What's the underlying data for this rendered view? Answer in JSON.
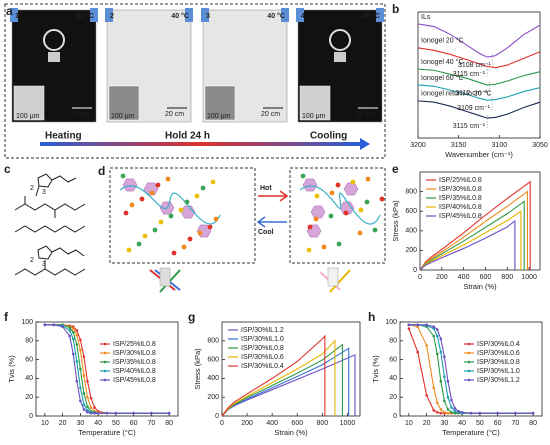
{
  "panel_labels": [
    "a",
    "b",
    "c",
    "d",
    "e",
    "f",
    "g",
    "h"
  ],
  "photos": [
    {
      "number": "1",
      "temp": "20 °C",
      "color": "#1f5fd6"
    },
    {
      "number": "2",
      "temp": "40 °C",
      "color": "#e0312a"
    },
    {
      "number": "3",
      "temp": "40 °C",
      "color": "#e0312a"
    },
    {
      "number": "4",
      "temp": "20 °C",
      "color": "#1f5fd6"
    }
  ],
  "scale_bars": {
    "photo": "20 cm",
    "micro": "100 μm"
  },
  "process": [
    "Heating",
    "Hold 24 h",
    "Cooling"
  ],
  "scheme_c": {
    "labels": [
      "2",
      "3",
      "2",
      "3"
    ]
  },
  "scheme_d": {
    "hot": "Hot",
    "cool": "Cool"
  },
  "chart_data": [
    {
      "type": "line",
      "xlabel": "Wavenumber (cm⁻¹)",
      "x": [
        3200,
        3180,
        3160,
        3140,
        3125,
        3115,
        3105,
        3090,
        3070,
        3050
      ],
      "xlim": [
        3200,
        3050
      ],
      "xticks": [
        3200,
        3150,
        3100,
        3050
      ],
      "ylim": [
        1,
        10.5
      ],
      "legend": "left",
      "series": [
        {
          "name": "ILs",
          "color": "#8a4fc6",
          "values": [
            9.6,
            9.4,
            8.8,
            8.0,
            7.4,
            7.1,
            7.2,
            7.8,
            8.8,
            9.5
          ]
        },
        {
          "name": "Ionogel 20 °C",
          "color": "#e0312a",
          "values": [
            7.8,
            7.6,
            7.3,
            6.9,
            6.6,
            6.4,
            6.3,
            6.5,
            7.0,
            7.5
          ]
        },
        {
          "name": "Ionogel 40 °C",
          "color": "#2e9a48",
          "values": [
            6.2,
            6.1,
            5.8,
            5.5,
            5.2,
            5.0,
            5.05,
            5.3,
            5.7,
            6.0
          ]
        },
        {
          "name": "Ionogel 60 °C",
          "color": "#1aa0b0",
          "values": [
            5.0,
            4.9,
            4.6,
            4.3,
            4.0,
            3.85,
            3.9,
            4.1,
            4.5,
            4.8
          ]
        },
        {
          "name": "Ionogel return to 20 °C",
          "color": "#1c2a55",
          "values": [
            3.8,
            3.7,
            3.4,
            3.0,
            2.7,
            2.5,
            2.55,
            2.8,
            3.3,
            3.7
          ]
        }
      ],
      "annotations": [
        {
          "text": "3108 cm⁻¹",
          "x": 3108
        },
        {
          "text": "3115 cm⁻¹",
          "x": 3115
        },
        {
          "text": "3112 cm⁻¹",
          "x": 3112
        },
        {
          "text": "3109 cm⁻¹",
          "x": 3109
        },
        {
          "text": "3115 cm⁻¹",
          "x": 3115
        }
      ]
    },
    {
      "type": "line",
      "xlabel": "Strain (%)",
      "ylabel": "Stress (kPa)",
      "xlim": [
        0,
        1100
      ],
      "xticks": [
        0,
        200,
        400,
        600,
        800,
        1000
      ],
      "ylim": [
        0,
        1000
      ],
      "yticks": [
        0,
        200,
        400,
        600,
        800
      ],
      "legend": "upper left",
      "series": [
        {
          "name": "ISP/25%IL0.8",
          "color": "#e0312a",
          "x": [
            0,
            50,
            100,
            200,
            400,
            600,
            800,
            1010,
            1010
          ],
          "values": [
            0,
            80,
            130,
            210,
            380,
            560,
            730,
            900,
            0
          ]
        },
        {
          "name": "ISP/30%IL0.8",
          "color": "#f08a1c",
          "x": [
            0,
            50,
            100,
            200,
            400,
            600,
            800,
            985,
            985
          ],
          "values": [
            0,
            70,
            115,
            185,
            335,
            495,
            650,
            800,
            0
          ]
        },
        {
          "name": "ISP/35%IL0.8",
          "color": "#2e9a48",
          "x": [
            0,
            50,
            100,
            200,
            400,
            600,
            800,
            955,
            955
          ],
          "values": [
            0,
            62,
            100,
            165,
            295,
            435,
            575,
            700,
            0
          ]
        },
        {
          "name": "ISP/40%IL0.8",
          "color": "#e8b400",
          "x": [
            0,
            50,
            100,
            200,
            400,
            600,
            800,
            925,
            925
          ],
          "values": [
            0,
            55,
            88,
            145,
            255,
            380,
            505,
            600,
            0
          ]
        },
        {
          "name": "ISP/45%IL0.8",
          "color": "#6a4fc6",
          "x": [
            0,
            50,
            100,
            200,
            400,
            600,
            800,
            870,
            870
          ],
          "values": [
            0,
            48,
            75,
            125,
            220,
            325,
            440,
            500,
            0
          ]
        }
      ]
    },
    {
      "type": "line",
      "xlabel": "Temperature (°C)",
      "ylabel": "Tvis (%)",
      "x": [
        10,
        15,
        20,
        24,
        26,
        28,
        30,
        32,
        34,
        36,
        38,
        40,
        45,
        50,
        60,
        70,
        80
      ],
      "xlim": [
        5,
        85
      ],
      "xticks": [
        10,
        20,
        30,
        40,
        50,
        60,
        70,
        80
      ],
      "ylim": [
        0,
        100
      ],
      "yticks": [
        0,
        20,
        40,
        60,
        80,
        100
      ],
      "markers": true,
      "legend": "right",
      "series": [
        {
          "name": "ISP/25%IL0.8",
          "color": "#e0312a",
          "values": [
            97,
            97,
            97,
            96,
            95,
            91,
            81,
            63,
            37,
            19,
            9,
            5,
            3,
            3,
            3,
            3,
            3
          ]
        },
        {
          "name": "ISP/30%IL0.8",
          "color": "#f08a1c",
          "values": [
            97,
            97,
            97,
            95,
            93,
            86,
            70,
            43,
            20,
            9,
            5,
            4,
            3,
            3,
            3,
            3,
            3
          ]
        },
        {
          "name": "ISP/35%IL0.8",
          "color": "#2e9a48",
          "values": [
            97,
            97,
            97,
            94,
            89,
            76,
            50,
            24,
            10,
            5,
            4,
            3,
            3,
            3,
            3,
            3,
            3
          ]
        },
        {
          "name": "ISP/40%IL0.8",
          "color": "#1aa0b0",
          "values": [
            97,
            97,
            96,
            91,
            82,
            58,
            30,
            12,
            6,
            4,
            3,
            3,
            3,
            3,
            3,
            3,
            3
          ]
        },
        {
          "name": "ISP/45%IL0.8",
          "color": "#6a4fc6",
          "values": [
            97,
            97,
            95,
            85,
            66,
            37,
            16,
            7,
            4,
            3,
            3,
            3,
            3,
            3,
            3,
            3,
            3
          ]
        }
      ]
    },
    {
      "type": "line",
      "xlabel": "Strain (%)",
      "ylabel": "Stress (kPa)",
      "xlim": [
        0,
        1100
      ],
      "xticks": [
        0,
        200,
        400,
        600,
        800,
        1000
      ],
      "ylim": [
        0,
        1000
      ],
      "yticks": [
        0,
        200,
        400,
        600,
        800
      ],
      "legend": "upper left",
      "series": [
        {
          "name": "ISP/30%IL1.2",
          "color": "#6a4fc6",
          "x": [
            0,
            50,
            100,
            200,
            400,
            600,
            800,
            1060,
            1060
          ],
          "values": [
            0,
            70,
            110,
            170,
            280,
            390,
            500,
            650,
            0
          ]
        },
        {
          "name": "ISP/30%IL1.0",
          "color": "#3b6fd8",
          "x": [
            0,
            50,
            100,
            200,
            400,
            600,
            800,
            1010,
            1010
          ],
          "values": [
            0,
            70,
            115,
            180,
            300,
            420,
            545,
            720,
            0
          ]
        },
        {
          "name": "ISP/30%IL0.8",
          "color": "#2e9a48",
          "x": [
            0,
            50,
            100,
            200,
            400,
            600,
            800,
            960,
            960
          ],
          "values": [
            0,
            75,
            125,
            195,
            325,
            455,
            595,
            760,
            0
          ]
        },
        {
          "name": "ISP/30%IL0.6",
          "color": "#e8b400",
          "x": [
            0,
            50,
            100,
            200,
            400,
            600,
            800,
            900,
            900
          ],
          "values": [
            0,
            80,
            135,
            210,
            355,
            500,
            660,
            800,
            0
          ]
        },
        {
          "name": "ISP/30%IL0.4",
          "color": "#e0312a",
          "x": [
            0,
            50,
            100,
            200,
            400,
            600,
            800,
            820,
            820
          ],
          "values": [
            0,
            90,
            150,
            235,
            400,
            580,
            820,
            850,
            0
          ]
        }
      ]
    },
    {
      "type": "line",
      "xlabel": "Temperature (°C)",
      "ylabel": "Tvis (%)",
      "x": [
        10,
        15,
        20,
        24,
        26,
        28,
        30,
        32,
        34,
        36,
        38,
        40,
        45,
        50,
        60,
        70,
        80
      ],
      "xlim": [
        5,
        85
      ],
      "xticks": [
        10,
        20,
        30,
        40,
        50,
        60,
        70,
        80
      ],
      "ylim": [
        0,
        100
      ],
      "yticks": [
        0,
        20,
        40,
        60,
        80,
        100
      ],
      "markers": true,
      "legend": "right",
      "series": [
        {
          "name": "ISP/30%IL0.4",
          "color": "#e0312a",
          "values": [
            93,
            68,
            22,
            6,
            4,
            3,
            3,
            3,
            3,
            3,
            3,
            3,
            3,
            3,
            3,
            3,
            3
          ]
        },
        {
          "name": "ISP/30%IL0.6",
          "color": "#f08a1c",
          "values": [
            97,
            95,
            75,
            30,
            14,
            7,
            4,
            3,
            3,
            3,
            3,
            3,
            3,
            3,
            3,
            3,
            3
          ]
        },
        {
          "name": "ISP/30%IL0.8",
          "color": "#2e9a48",
          "values": [
            97,
            97,
            95,
            85,
            66,
            37,
            16,
            7,
            4,
            3,
            3,
            3,
            3,
            3,
            3,
            3,
            3
          ]
        },
        {
          "name": "ISP/30%IL1.0",
          "color": "#1aa0b0",
          "values": [
            97,
            97,
            96,
            93,
            85,
            68,
            42,
            20,
            9,
            5,
            4,
            3,
            3,
            3,
            3,
            3,
            3
          ]
        },
        {
          "name": "ISP/30%IL1.2",
          "color": "#6a4fc6",
          "values": [
            97,
            97,
            97,
            95,
            92,
            82,
            63,
            37,
            17,
            8,
            5,
            4,
            3,
            3,
            3,
            3,
            3
          ]
        }
      ]
    }
  ]
}
